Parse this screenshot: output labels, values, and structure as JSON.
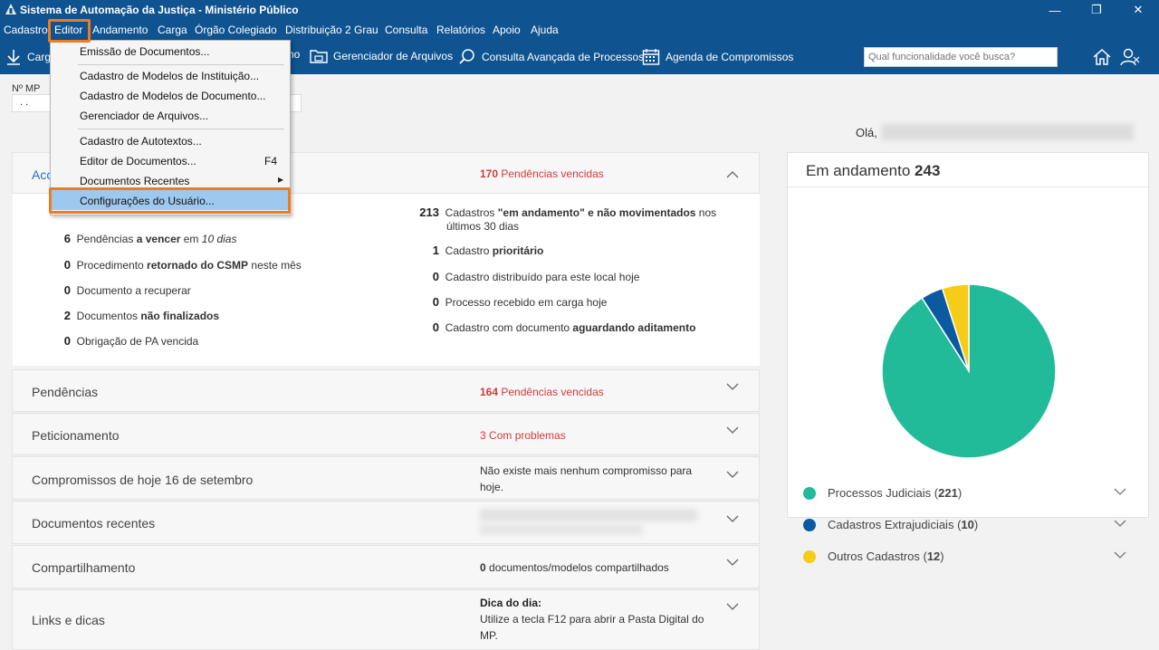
{
  "window": {
    "title": "Sistema de Automação da Justiça - Ministério Público",
    "minimize": "—",
    "restore": "❐",
    "close": "✕"
  },
  "menu": [
    "Cadastro",
    "Editor",
    "Andamento",
    "Carga",
    "Órgão Colegiado",
    "Distribuição 2 Grau",
    "Consulta",
    "Relatórios",
    "Apoio",
    "Ajuda"
  ],
  "toolbar": {
    "carga": "Carg",
    "hidden_suffix": "no",
    "gerenciador": "Gerenciador de Arquivos",
    "consulta": "Consulta Avançada de Processos",
    "agenda": "Agenda de Compromissos",
    "search_placeholder": "Qual funcionalidade você busca?"
  },
  "dropdown": {
    "items": [
      {
        "label": "Emissão de Documentos..."
      },
      {
        "label": "Cadastro de Modelos de Instituição..."
      },
      {
        "label": "Cadastro de Modelos de Documento..."
      },
      {
        "label": "Gerenciador de Arquivos..."
      },
      {
        "label": "Cadastro de Autotextos..."
      },
      {
        "label": "Editor de Documentos...",
        "shortcut": "F4"
      },
      {
        "label": "Documentos Recentes",
        "submenu_arrow": "▸"
      },
      {
        "label": "Configurações do Usuário..."
      }
    ]
  },
  "main": {
    "nmp_label": "Nº MP",
    "nmp_value": ". .",
    "greeting": "Olá,",
    "acc_title": "Acc",
    "acc_right": {
      "num": "170",
      "text": "Pendências vencidas"
    },
    "left_stats": [
      {
        "n": "6",
        "pre": "Pendências ",
        "bold": "a vencer",
        "post": " em ",
        "italic": "10 dias"
      },
      {
        "n": "0",
        "pre": "Procedimento ",
        "bold": "retornado do CSMP",
        "post": " neste mês"
      },
      {
        "n": "0",
        "pre": "Documento a recuperar"
      },
      {
        "n": "2",
        "pre": "Documentos ",
        "bold": "não finalizados"
      },
      {
        "n": "0",
        "pre": "Obrigação de PA vencida"
      }
    ],
    "right_stats": [
      {
        "n": "213",
        "line1_pre": "Cadastros ",
        "line1_bold": "\"em andamento\" e não movimentados",
        "line1_post": " nos",
        "line2": "últimos 30 dias"
      },
      {
        "n": "1",
        "pre": "Cadastro ",
        "bold": "prioritário"
      },
      {
        "n": "0",
        "pre": "Cadastro distribuído para este local hoje"
      },
      {
        "n": "0",
        "pre": "Processo recebido em carga hoje"
      },
      {
        "n": "0",
        "pre": "Cadastro com documento ",
        "bold": "aguardando aditamento"
      }
    ],
    "panels": [
      {
        "title": "Pendências",
        "right_num": "164",
        "right_text": "Pendências vencidas"
      },
      {
        "title": "Peticionamento",
        "right_num": "3",
        "right_text": "Com problemas"
      },
      {
        "title": "Compromissos de hoje 16 de setembro",
        "right_line1": "Não existe mais nenhum compromisso para",
        "right_line2": "hoje."
      },
      {
        "title": "Documentos recentes"
      },
      {
        "title": "Compartilhamento",
        "right_num": "0",
        "right_text": "documentos/modelos compartilhados"
      },
      {
        "title": "Links e dicas",
        "right_bold": "Dica do dia:",
        "right_line1": "Utilize a tecla F12 para abrir a Pasta Digital do",
        "right_line2": "MP."
      }
    ]
  },
  "summary": {
    "title": "Em andamento",
    "total": "243",
    "legend": [
      {
        "label": "Processos Judiciais",
        "count": "221",
        "color": "#21bb99"
      },
      {
        "label": "Cadastros Extrajudiciais",
        "count": "10",
        "color": "#0b5aa0"
      },
      {
        "label": "Outros Cadastros",
        "count": "12",
        "color": "#f5cc16"
      }
    ]
  },
  "chart_data": {
    "type": "pie",
    "categories": [
      "Processos Judiciais",
      "Cadastros Extrajudiciais",
      "Outros Cadastros"
    ],
    "values": [
      221,
      10,
      12
    ],
    "colors": [
      "#21bb99",
      "#0b5aa0",
      "#f5cc16"
    ]
  }
}
